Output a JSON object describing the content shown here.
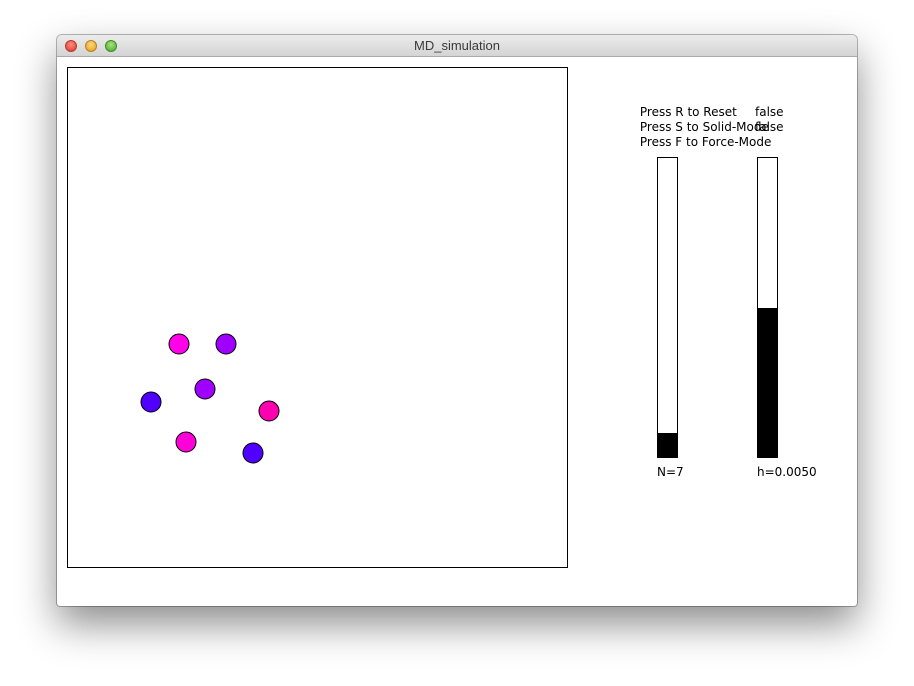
{
  "window": {
    "title": "MD_simulation"
  },
  "controls": {
    "reset": {
      "text": "Press R to Reset"
    },
    "solid": {
      "text": "Press S to Solid-Mode",
      "value": "false"
    },
    "force": {
      "text": "Press F to Force-Mode",
      "value": "false"
    }
  },
  "sliders": {
    "n": {
      "label": "N=7",
      "fill_fraction": 0.08
    },
    "h": {
      "label": "h=0.0050",
      "fill_fraction": 0.5
    }
  },
  "simulation": {
    "particle_count": 7,
    "particles": [
      {
        "color": "#ff00e8"
      },
      {
        "color": "#a000ff"
      },
      {
        "color": "#a000ff"
      },
      {
        "color": "#5000ff"
      },
      {
        "color": "#ff00b0"
      },
      {
        "color": "#ff00d8"
      },
      {
        "color": "#5000ff"
      }
    ]
  }
}
